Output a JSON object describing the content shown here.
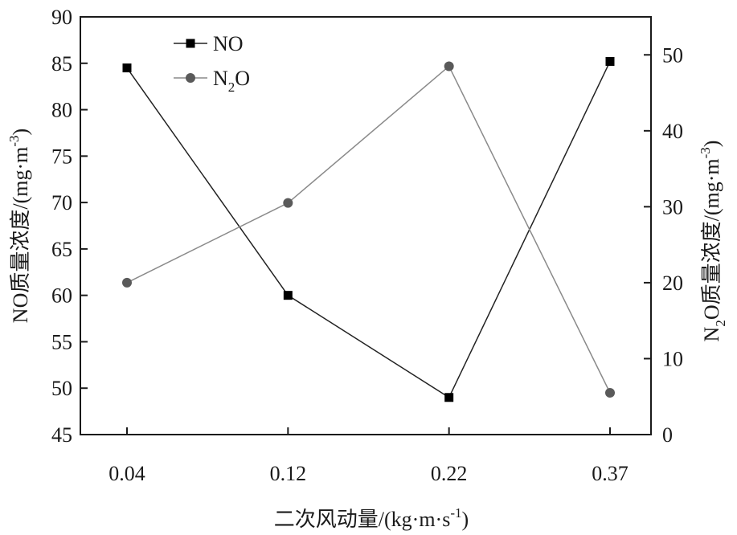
{
  "chart_data": {
    "type": "line",
    "categories": [
      "0.04",
      "0.12",
      "0.22",
      "0.37"
    ],
    "xlabel": {
      "text": "二次风动量/(kg·m·s",
      "sup": "-1",
      "tail": ")"
    },
    "ylabel_left": {
      "text": "NO质量浓度/(mg·m",
      "sup": "-3",
      "tail": ")"
    },
    "ylabel_right": {
      "prefix": "N",
      "sub": "2",
      "text": "O质量浓度/(mg·m",
      "sup": "-3",
      "tail": ")"
    },
    "yleft": {
      "min": 45,
      "max": 90,
      "ticks": [
        45,
        50,
        55,
        60,
        65,
        70,
        75,
        80,
        85,
        90
      ]
    },
    "yright": {
      "min": 0,
      "max": 55,
      "ticks": [
        0,
        10,
        20,
        30,
        40,
        50
      ]
    },
    "series": [
      {
        "name": "NO",
        "label_main": "NO",
        "label_sub": "",
        "label_tail": "",
        "axis": "left",
        "marker": "square",
        "color": "#000000",
        "line_color": "#222222",
        "values": [
          84.5,
          60.0,
          49.0,
          85.2
        ]
      },
      {
        "name": "N2O",
        "label_main": "N",
        "label_sub": "2",
        "label_tail": "O",
        "axis": "right",
        "marker": "circle",
        "color": "#5a5a5a",
        "line_color": "#8a8a8a",
        "values": [
          20.0,
          30.5,
          48.5,
          5.5
        ]
      }
    ],
    "legend": "top-left",
    "grid": false
  }
}
